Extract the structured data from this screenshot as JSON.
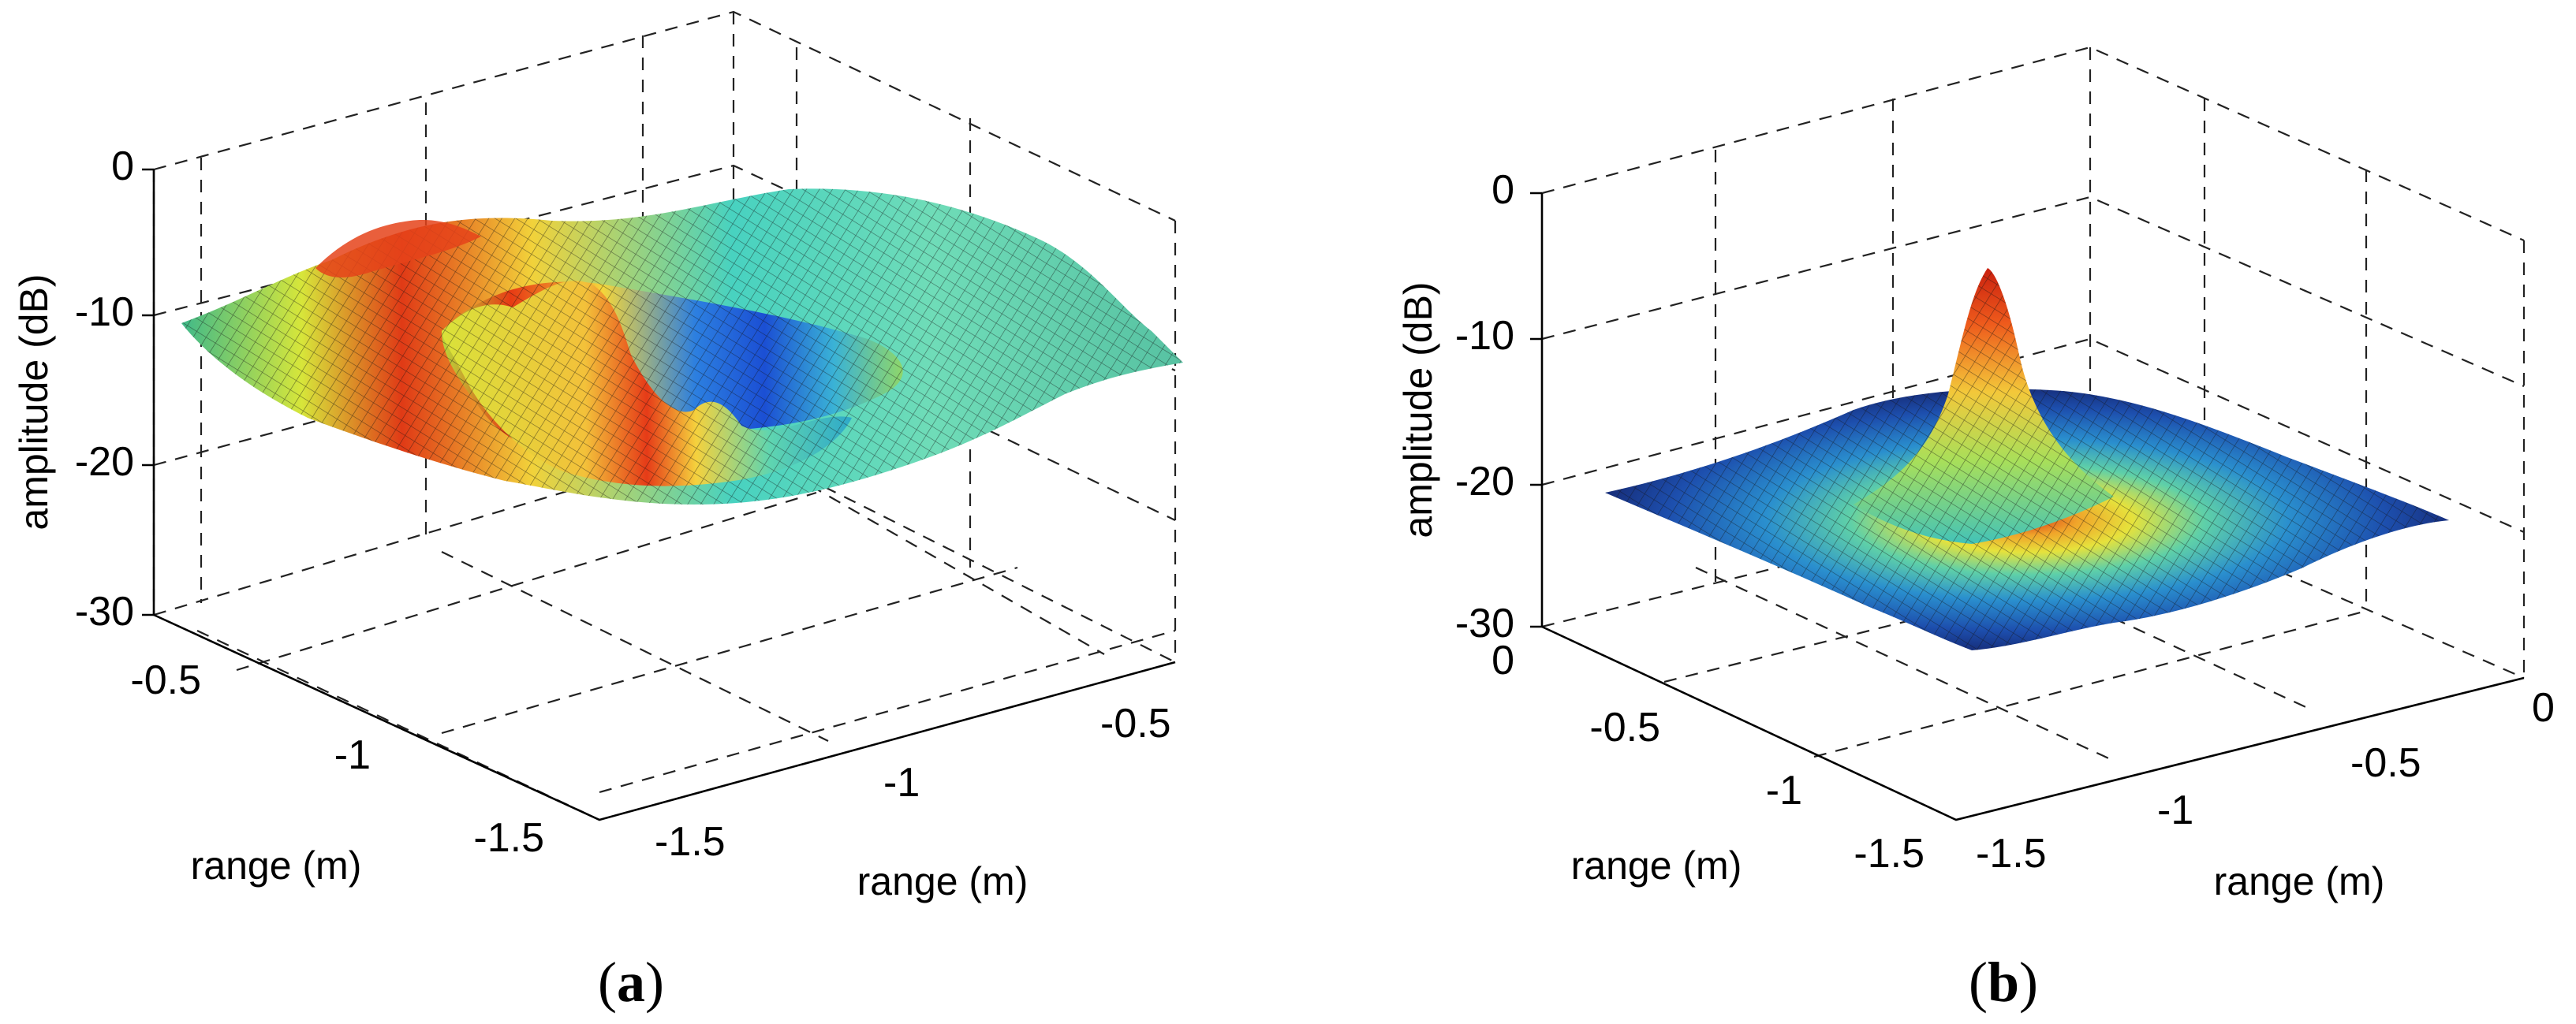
{
  "chart_data": [
    {
      "panel": "a",
      "type": "surface",
      "zlabel": "amplitude (dB)",
      "xlabel": "range (m)",
      "ylabel": "range (m)",
      "zlim": [
        -30,
        0
      ],
      "zticks": [
        "0",
        "-10",
        "-20",
        "-30"
      ],
      "xticks": [
        "-0.5",
        "-1",
        "-1.5"
      ],
      "yticks": [
        "-0.5",
        "-1",
        "-1.5"
      ],
      "grid": true,
      "description_peaks_dB": {
        "front_ridge_max": -6,
        "back_ridge_max": -7,
        "center_min": -22,
        "edge_level": -11
      },
      "colormap": "jet"
    },
    {
      "panel": "b",
      "type": "surface",
      "zlabel": "amplitude (dB)",
      "xlabel": "range (m)",
      "ylabel": "range (m)",
      "zlim": [
        -30,
        0
      ],
      "zticks": [
        "0",
        "-10",
        "-20",
        "-30"
      ],
      "xticks": [
        "0",
        "-0.5",
        "-1",
        "-1.5"
      ],
      "yticks": [
        "0",
        "-0.5",
        "-1",
        "-1.5"
      ],
      "grid": true,
      "description_peaks_dB": {
        "central_peak": -5,
        "floor_level": -22
      },
      "colormap": "jet"
    }
  ],
  "panel_labels": {
    "a": {
      "open": "(",
      "letter": "a",
      "close": ")"
    },
    "b": {
      "open": "(",
      "letter": "b",
      "close": ")"
    }
  }
}
